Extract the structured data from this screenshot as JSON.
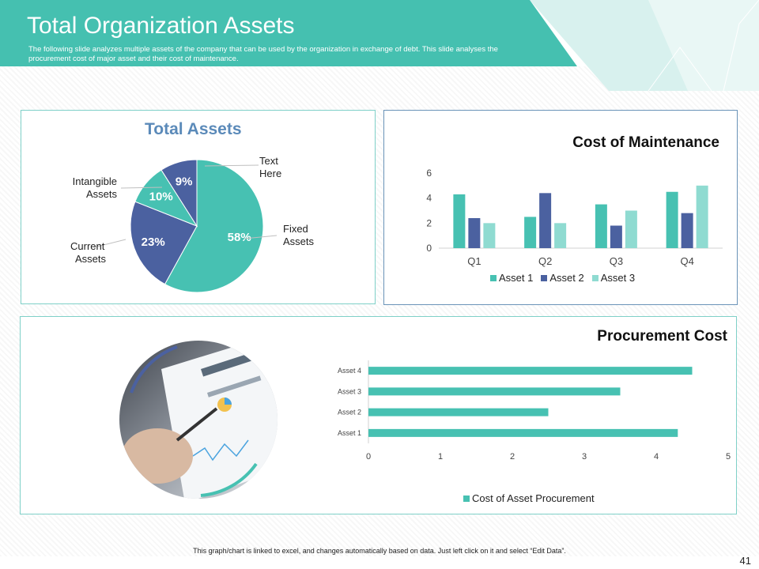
{
  "header": {
    "title": "Total Organization Assets",
    "subtitle": "The following slide analyzes multiple assets of the company that can be used by the organization in exchange of debt. This slide analyses the procurement cost of major  asset and their cost of maintenance."
  },
  "colors": {
    "teal": "#47c1b2",
    "navy": "#4b61a0",
    "light_teal": "#8fdbd1",
    "title_blue": "#5b8ab9",
    "header_teal": "#45c0b0"
  },
  "image_desc": "tablet-with-charts-photo",
  "footer": {
    "note": "This graph/chart is linked to excel, and changes automatically based on data. Just left click on it and select “Edit Data”.",
    "page_number": "41"
  },
  "chart_data": [
    {
      "type": "pie",
      "title": "Total Assets",
      "slices": [
        {
          "label": "Fixed Assets",
          "value": 58,
          "value_label": "58%",
          "color": "#47c1b2"
        },
        {
          "label": "Current Assets",
          "value": 23,
          "value_label": "23%",
          "color": "#4b61a0"
        },
        {
          "label": "Intangible Assets",
          "value": 10,
          "value_label": "10%",
          "color": "#47c1b2"
        },
        {
          "label": "Text Here",
          "value": 9,
          "value_label": "9%",
          "color": "#4b61a0"
        }
      ],
      "callout_labels": {
        "fixed": [
          "Fixed",
          "Assets"
        ],
        "current": [
          "Current",
          "Assets"
        ],
        "intangible": [
          "Intangible",
          "Assets"
        ],
        "text": [
          "Text",
          "Here"
        ]
      }
    },
    {
      "type": "bar",
      "title": "Cost of Maintenance",
      "categories": [
        "Q1",
        "Q2",
        "Q3",
        "Q4"
      ],
      "series": [
        {
          "name": "Asset 1",
          "values": [
            4.3,
            2.5,
            3.5,
            4.5
          ],
          "color": "#47c1b2"
        },
        {
          "name": "Asset 2",
          "values": [
            2.4,
            4.4,
            1.8,
            2.8
          ],
          "color": "#4b61a0"
        },
        {
          "name": "Asset 3",
          "values": [
            2.0,
            2.0,
            3.0,
            5.0
          ],
          "color": "#8fdbd1"
        }
      ],
      "ylim": [
        0,
        6
      ],
      "yticks": [
        "0",
        "2",
        "4",
        "6"
      ],
      "grid": false,
      "legend": "bottom"
    },
    {
      "type": "bar",
      "orientation": "horizontal",
      "title": "Procurement Cost",
      "categories": [
        "Asset 1",
        "Asset 2",
        "Asset 3",
        "Asset 4"
      ],
      "series": [
        {
          "name": "Cost of Asset Procurement",
          "values": [
            4.3,
            2.5,
            3.5,
            4.5
          ],
          "color": "#47c1b2"
        }
      ],
      "xlim": [
        0,
        5
      ],
      "xticks": [
        "0",
        "1",
        "2",
        "3",
        "4",
        "5"
      ],
      "grid": false,
      "legend": "bottom"
    }
  ]
}
